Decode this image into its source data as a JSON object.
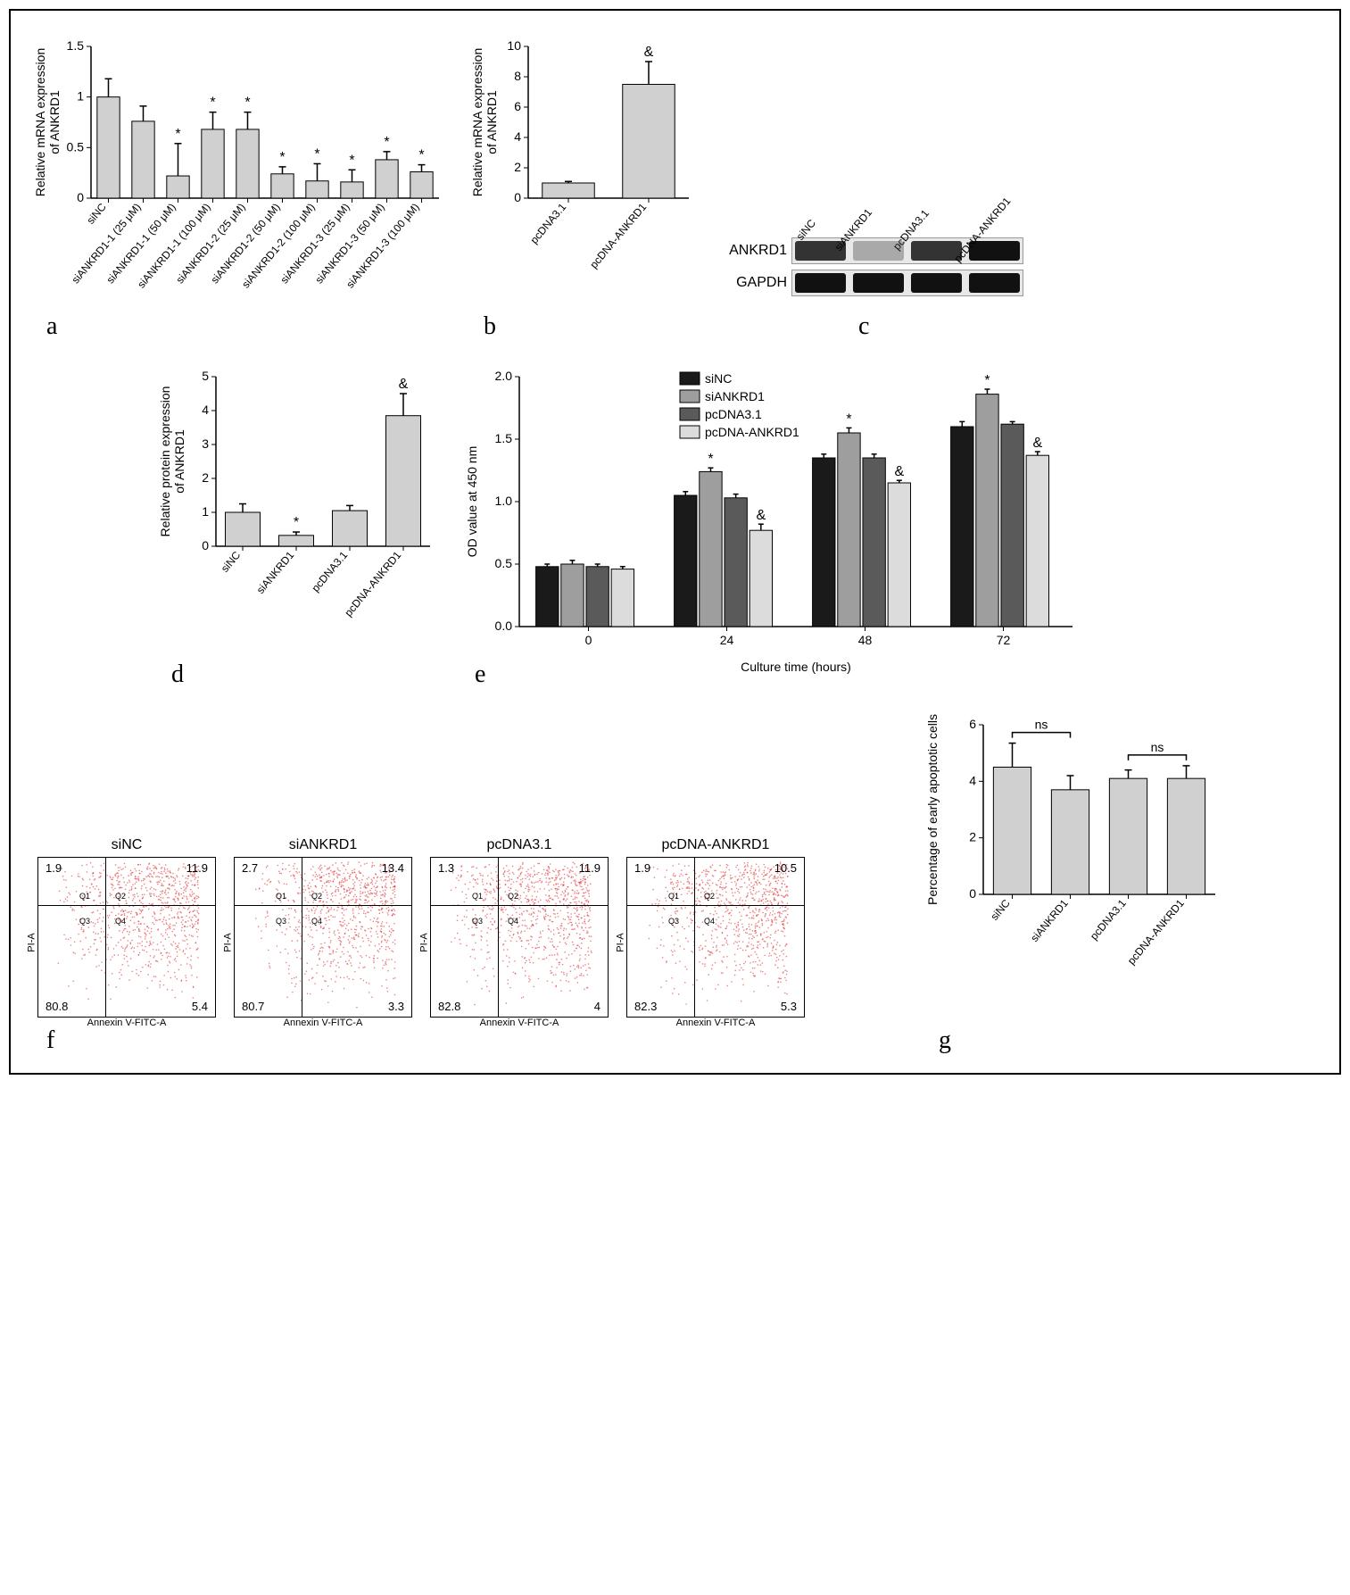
{
  "panel_a": {
    "type": "bar",
    "ylabel": "Relative mRNA expression\nof ANKRD1",
    "ylim": [
      0,
      1.5
    ],
    "ytick_step": 0.5,
    "bar_color": "#d0d0d0",
    "categories": [
      "siNC",
      "siANKRD1-1 (25 μM)",
      "siANKRD1-1 (50 μM)",
      "siANKRD1-1 (100 μM)",
      "siANKRD1-2 (25 μM)",
      "siANKRD1-2 (50 μM)",
      "siANKRD1-2 (100 μM)",
      "siANKRD1-3 (25 μM)",
      "siANKRD1-3 (50 μM)",
      "siANKRD1-3 (100 μM)"
    ],
    "values": [
      1.0,
      0.76,
      0.22,
      0.68,
      0.68,
      0.24,
      0.17,
      0.16,
      0.38,
      0.26
    ],
    "errors": [
      0.18,
      0.15,
      0.32,
      0.17,
      0.17,
      0.07,
      0.17,
      0.12,
      0.08,
      0.07
    ],
    "sig": [
      "",
      "",
      "*",
      "*",
      "*",
      "*",
      "*",
      "*",
      "*",
      "*"
    ]
  },
  "panel_b": {
    "type": "bar",
    "ylabel": "Relative mRNA expression\nof ANKRD1",
    "ylim": [
      0,
      10
    ],
    "ytick_step": 2,
    "bar_color": "#d0d0d0",
    "categories": [
      "pcDNA3.1",
      "pcDNA-ANKRD1"
    ],
    "values": [
      1.0,
      7.5
    ],
    "errors": [
      0.1,
      1.5
    ],
    "sig": [
      "",
      "&"
    ]
  },
  "panel_c": {
    "type": "western-blot",
    "lanes": [
      "siNC",
      "siANKRD1",
      "pcDNA3.1",
      "pcDNA-ANKRD1"
    ],
    "rows": [
      {
        "label": "ANKRD1",
        "intensity": [
          "med",
          "weak",
          "med",
          "strong"
        ]
      },
      {
        "label": "GAPDH",
        "intensity": [
          "strong",
          "strong",
          "strong",
          "strong"
        ]
      }
    ]
  },
  "panel_d": {
    "type": "bar",
    "ylabel": "Relative protein expression\nof ANKRD1",
    "ylim": [
      0,
      5
    ],
    "ytick_step": 1,
    "bar_color": "#d0d0d0",
    "categories": [
      "siNC",
      "siANKRD1",
      "pcDNA3.1",
      "pcDNA-ANKRD1"
    ],
    "values": [
      1.0,
      0.32,
      1.05,
      3.85
    ],
    "errors": [
      0.25,
      0.1,
      0.15,
      0.65
    ],
    "sig": [
      "",
      "*",
      "",
      "&"
    ]
  },
  "panel_e": {
    "type": "grouped-bar",
    "ylabel": "OD value at 450 nm",
    "xlabel": "Culture time (hours)",
    "ylim": [
      0,
      2.0
    ],
    "ytick_step": 0.5,
    "timepoints": [
      "0",
      "24",
      "48",
      "72"
    ],
    "series": [
      {
        "name": "siNC",
        "color": "#1a1a1a"
      },
      {
        "name": "siANKRD1",
        "color": "#9e9e9e"
      },
      {
        "name": "pcDNA3.1",
        "color": "#5a5a5a"
      },
      {
        "name": "pcDNA-ANKRD1",
        "color": "#dcdcdc"
      }
    ],
    "values": [
      [
        0.48,
        0.5,
        0.48,
        0.46
      ],
      [
        1.05,
        1.24,
        1.03,
        0.77
      ],
      [
        1.35,
        1.55,
        1.35,
        1.15
      ],
      [
        1.6,
        1.86,
        1.62,
        1.37
      ]
    ],
    "errors": [
      [
        0.02,
        0.03,
        0.02,
        0.02
      ],
      [
        0.03,
        0.03,
        0.03,
        0.05
      ],
      [
        0.03,
        0.04,
        0.03,
        0.02
      ],
      [
        0.04,
        0.04,
        0.02,
        0.03
      ]
    ],
    "sig": [
      [
        "",
        "",
        "",
        ""
      ],
      [
        "",
        "*",
        "",
        "&"
      ],
      [
        "",
        "*",
        "",
        "&"
      ],
      [
        "",
        "*",
        "",
        "&"
      ]
    ]
  },
  "panel_f": {
    "type": "flow-cytometry",
    "xlabel": "Annexin V-FITC-A",
    "ylabel": "PI-A",
    "plots": [
      {
        "title": "siNC",
        "q1": 1.9,
        "q2": 11.9,
        "q3": 80.8,
        "q4": 5.4
      },
      {
        "title": "siANKRD1",
        "q1": 2.7,
        "q2": 13.4,
        "q3": 80.7,
        "q4": 3.3
      },
      {
        "title": "pcDNA3.1",
        "q1": 1.3,
        "q2": 11.9,
        "q3": 82.8,
        "q4": 4.0
      },
      {
        "title": "pcDNA-ANKRD1",
        "q1": 1.9,
        "q2": 10.5,
        "q3": 82.3,
        "q4": 5.3
      }
    ]
  },
  "panel_g": {
    "type": "bar",
    "ylabel": "Percentage of early apoptotic cells",
    "ylim": [
      0,
      6
    ],
    "ytick_step": 2,
    "bar_color": "#d0d0d0",
    "categories": [
      "siNC",
      "siANKRD1",
      "pcDNA3.1",
      "pcDNA-ANKRD1"
    ],
    "values": [
      4.5,
      3.7,
      4.1,
      4.1
    ],
    "errors": [
      0.85,
      0.5,
      0.3,
      0.45
    ],
    "ns_pairs": [
      [
        0,
        1
      ],
      [
        2,
        3
      ]
    ]
  },
  "labels": {
    "a": "a",
    "b": "b",
    "c": "c",
    "d": "d",
    "e": "e",
    "f": "f",
    "g": "g"
  }
}
